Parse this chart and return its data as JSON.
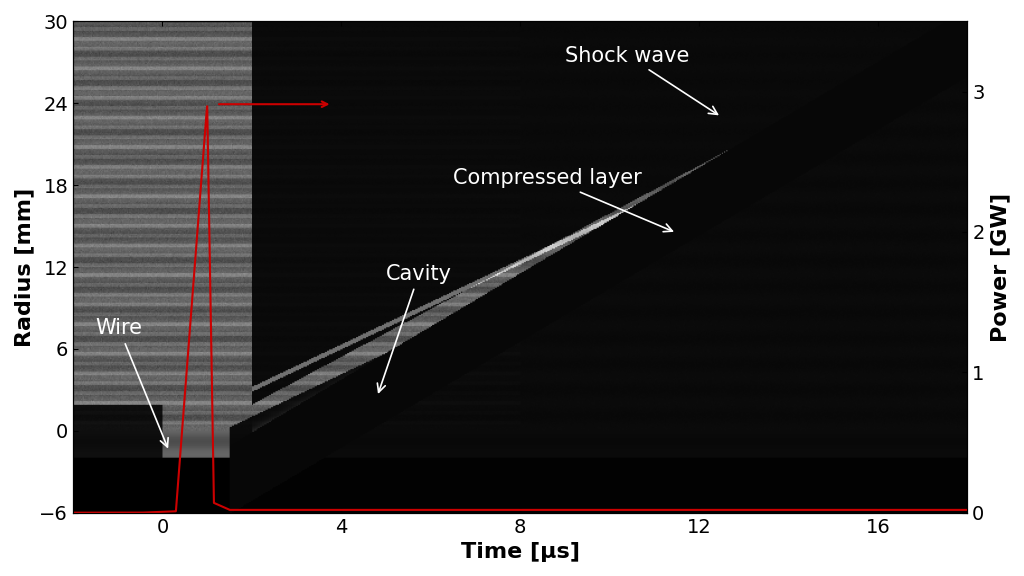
{
  "fig_width": 10.24,
  "fig_height": 5.76,
  "dpi": 100,
  "xlim": [
    -2,
    18
  ],
  "ylim_left": [
    -6,
    30
  ],
  "ylim_right": [
    0,
    3.5
  ],
  "xticks": [
    0,
    4,
    8,
    12,
    16
  ],
  "yticks_left": [
    -6,
    0,
    6,
    12,
    18,
    24,
    30
  ],
  "yticks_right": [
    0,
    1,
    2,
    3
  ],
  "xlabel": "Time [μs]",
  "ylabel_left": "Radius [mm]",
  "ylabel_right": "Power [GW]",
  "axis_fontsize": 16,
  "tick_fontsize": 14,
  "label_fontsize": 15,
  "power_color": "#cc0000",
  "arrow_annotations": [
    {
      "text": "Shock wave",
      "textxy": [
        9.0,
        27.5
      ],
      "arrowxy": [
        12.5,
        23.0
      ]
    },
    {
      "text": "Compressed layer",
      "textxy": [
        6.5,
        18.5
      ],
      "arrowxy": [
        11.5,
        14.5
      ]
    },
    {
      "text": "Cavity",
      "textxy": [
        5.0,
        11.5
      ],
      "arrowxy": [
        4.8,
        2.5
      ]
    },
    {
      "text": "Wire",
      "textxy": [
        -1.5,
        7.5
      ],
      "arrowxy": [
        0.15,
        -1.5
      ]
    }
  ]
}
